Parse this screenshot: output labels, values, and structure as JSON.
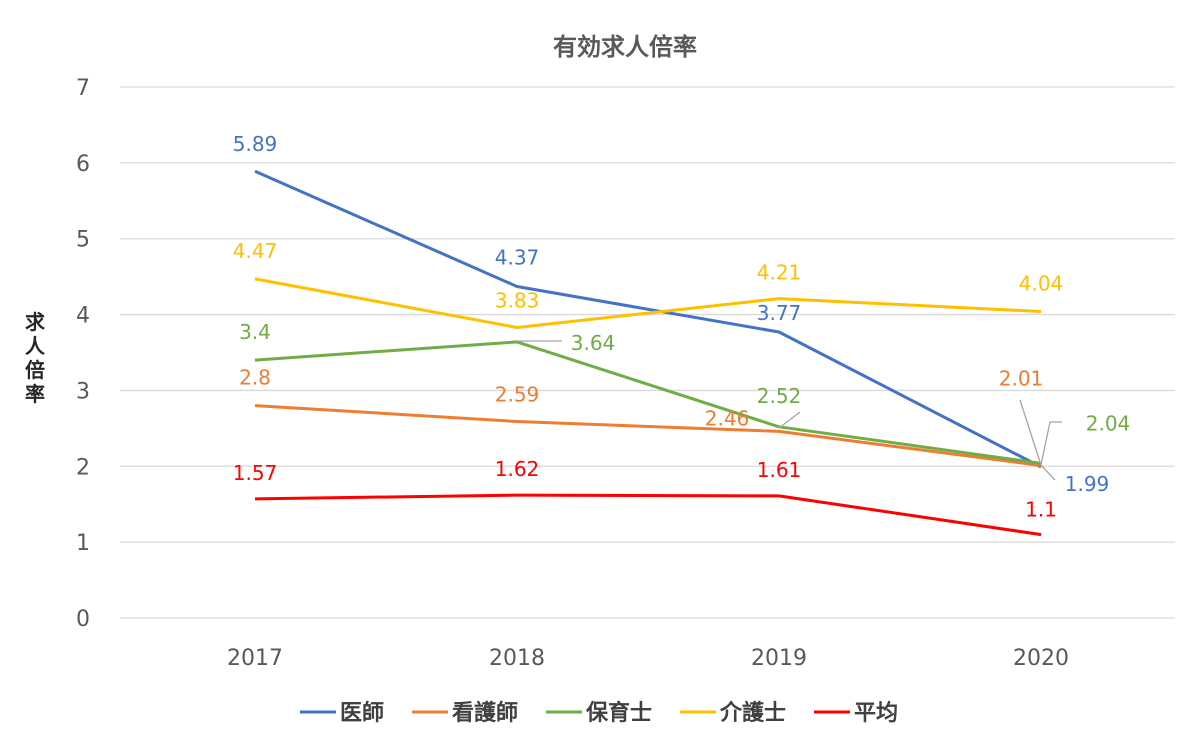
{
  "chart_data": {
    "type": "line",
    "title": "有効求人倍率",
    "ylabel": "求人倍率",
    "xlabel": "",
    "categories": [
      "2017",
      "2018",
      "2019",
      "2020"
    ],
    "ylim": [
      0,
      7
    ],
    "yticks": [
      0,
      1,
      2,
      3,
      4,
      5,
      6,
      7
    ],
    "grid": true,
    "legend": "bottom",
    "series": [
      {
        "name": "医師",
        "color": "#4472C4",
        "values": [
          5.89,
          4.37,
          3.77,
          1.99
        ]
      },
      {
        "name": "看護師",
        "color": "#ED7D31",
        "values": [
          2.8,
          2.59,
          2.46,
          2.01
        ]
      },
      {
        "name": "保育士",
        "color": "#70AD47",
        "values": [
          3.4,
          3.64,
          2.52,
          2.04
        ]
      },
      {
        "name": "介護士",
        "color": "#FFC000",
        "values": [
          4.47,
          3.83,
          4.21,
          4.04
        ]
      },
      {
        "name": "平均",
        "color": "#FF0000",
        "values": [
          1.57,
          1.62,
          1.61,
          1.1
        ]
      }
    ]
  }
}
